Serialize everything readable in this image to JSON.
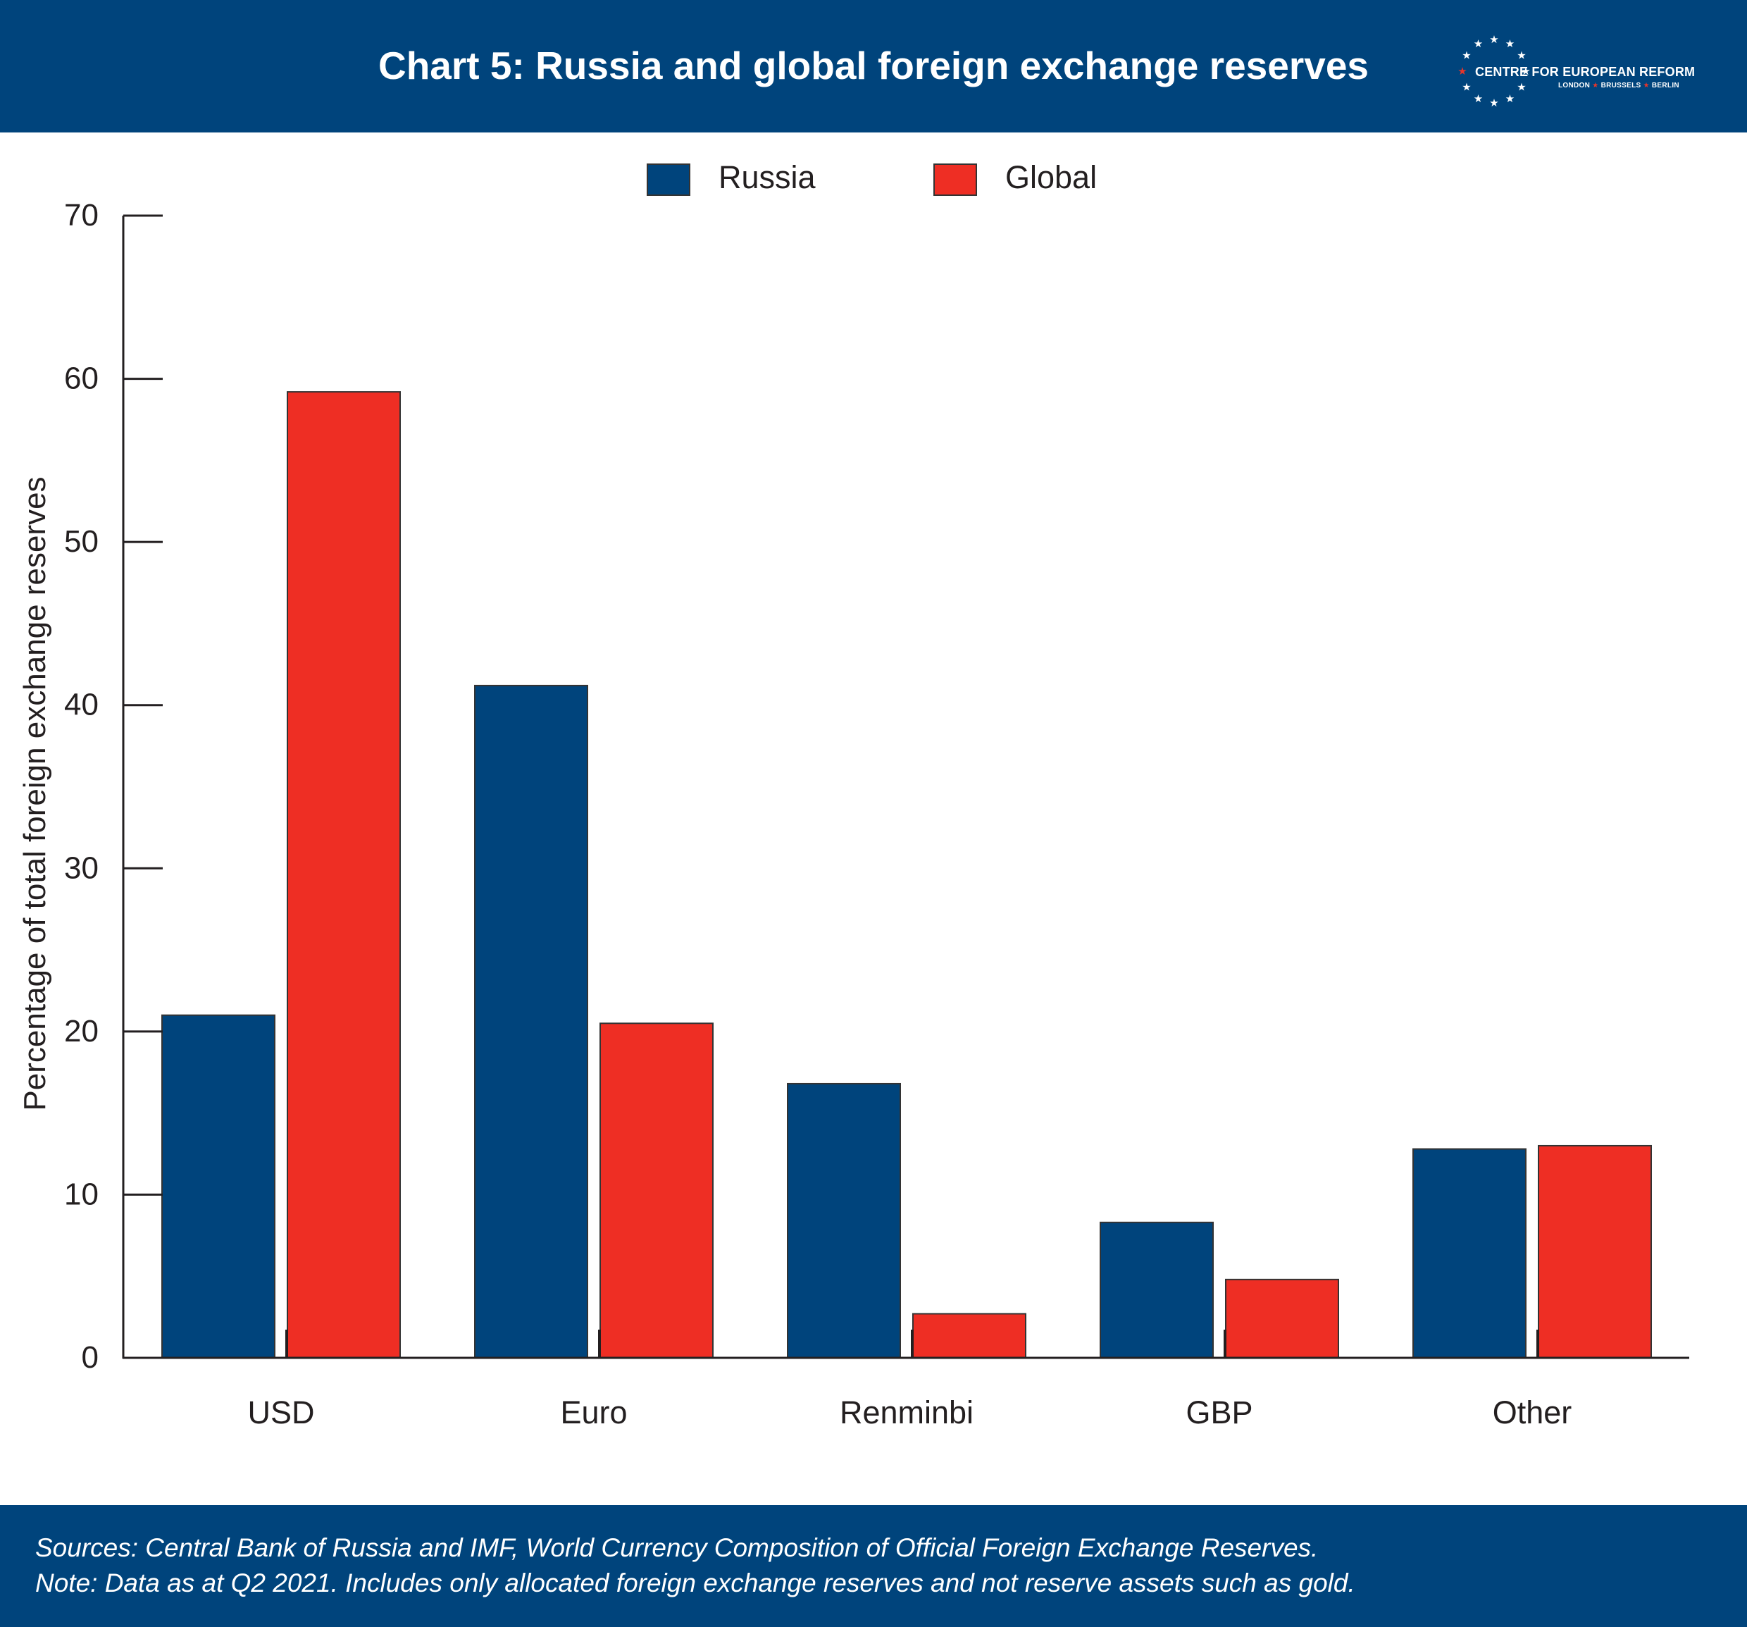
{
  "header": {
    "title": "Chart 5: Russia and global foreign exchange reserves",
    "logo_name": "CENTRE FOR EUROPEAN REFORM",
    "logo_cities": [
      "LONDON",
      "BRUSSELS",
      "BERLIN"
    ]
  },
  "colors": {
    "header_bg": "#00447c",
    "russia": "#00447c",
    "global": "#ee2e24",
    "axis": "#231f20"
  },
  "legend": {
    "russia": "Russia",
    "global": "Global"
  },
  "chart_data": {
    "type": "bar",
    "title": "Chart 5: Russia and global foreign exchange reserves",
    "xlabel": "",
    "ylabel": "Percentage of total foreign exchange reserves",
    "ylim": [
      0,
      70
    ],
    "yticks": [
      0,
      10,
      20,
      30,
      40,
      50,
      60,
      70
    ],
    "grid": false,
    "legend_position": "top-center",
    "categories": [
      "USD",
      "Euro",
      "Renminbi",
      "GBP",
      "Other"
    ],
    "series": [
      {
        "name": "Russia",
        "values": [
          21.0,
          41.2,
          16.8,
          8.3,
          12.8
        ]
      },
      {
        "name": "Global",
        "values": [
          59.2,
          20.5,
          2.7,
          4.8,
          13.0
        ]
      }
    ]
  },
  "footer": {
    "sources": "Sources: Central Bank of Russia and IMF, World Currency Composition of Official Foreign Exchange Reserves.",
    "note": "Note: Data as at Q2 2021. Includes only allocated foreign exchange reserves and not reserve assets such as gold."
  }
}
